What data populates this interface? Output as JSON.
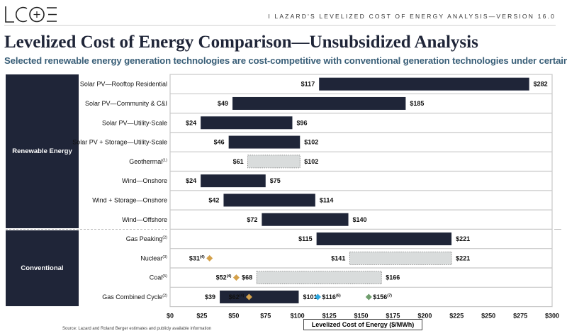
{
  "header": {
    "logo_text": "LCOE",
    "tagline": "I   LAZARD'S LEVELIZED COST OF ENERGY ANALYSIS—VERSION 16.0"
  },
  "title": "Levelized Cost of Energy Comparison—Unsubsidized Analysis",
  "subtitle": "Selected renewable energy generation technologies are cost-competitive with conventional generation technologies under certain circumstances",
  "categories": [
    {
      "label": "Renewable Energy",
      "rows": 8
    },
    {
      "label": "Conventional",
      "rows": 4
    }
  ],
  "source": "Source:   Lazard and Roland Berger estimates and publicly available information",
  "colors": {
    "bar": "#1f2538",
    "estimate_bar": "#d9dcdc",
    "gold_marker": "#d4a14a",
    "blue_marker": "#2fa8e0",
    "green_marker": "#6f9e6d"
  },
  "chart_data": {
    "type": "bar",
    "orientation": "horizontal-range",
    "title": "Levelized Cost of Energy Comparison—Unsubsidized Analysis",
    "xlabel": "Levelized Cost of Energy ($/MWh)",
    "ylabel": "",
    "xlim": [
      0,
      300
    ],
    "xticks": [
      0,
      25,
      50,
      75,
      100,
      125,
      150,
      175,
      200,
      225,
      250,
      275,
      300
    ],
    "xtick_labels": [
      "$0",
      "$25",
      "$50",
      "$75",
      "$100",
      "$125",
      "$150",
      "$175",
      "$200",
      "$225",
      "$250",
      "$275",
      "$300"
    ],
    "grid": false,
    "rows": [
      {
        "label": "Solar PV—Rooftop Residential",
        "sup": "",
        "low": 117,
        "high": 282,
        "low_label": "$117",
        "high_label": "$282",
        "style": "solid",
        "group": "Renewable Energy"
      },
      {
        "label": "Solar PV—Community & C&I",
        "sup": "",
        "low": 49,
        "high": 185,
        "low_label": "$49",
        "high_label": "$185",
        "style": "solid",
        "group": "Renewable Energy"
      },
      {
        "label": "Solar PV—Utility-Scale",
        "sup": "",
        "low": 24,
        "high": 96,
        "low_label": "$24",
        "high_label": "$96",
        "style": "solid",
        "group": "Renewable Energy"
      },
      {
        "label": "Solar PV + Storage—Utility-Scale",
        "sup": "",
        "low": 46,
        "high": 102,
        "low_label": "$46",
        "high_label": "$102",
        "style": "solid",
        "group": "Renewable Energy"
      },
      {
        "label": "Geothermal",
        "sup": "(1)",
        "low": 61,
        "high": 102,
        "low_label": "$61",
        "high_label": "$102",
        "style": "dashed",
        "group": "Renewable Energy"
      },
      {
        "label": "Wind—Onshore",
        "sup": "",
        "low": 24,
        "high": 75,
        "low_label": "$24",
        "high_label": "$75",
        "style": "solid",
        "group": "Renewable Energy"
      },
      {
        "label": "Wind + Storage—Onshore",
        "sup": "",
        "low": 42,
        "high": 114,
        "low_label": "$42",
        "high_label": "$114",
        "style": "solid",
        "group": "Renewable Energy"
      },
      {
        "label": "Wind—Offshore",
        "sup": "",
        "low": 72,
        "high": 140,
        "low_label": "$72",
        "high_label": "$140",
        "style": "solid",
        "group": "Renewable Energy"
      },
      {
        "label": "Gas Peaking",
        "sup": "(2)",
        "low": 115,
        "high": 221,
        "low_label": "$115",
        "high_label": "$221",
        "style": "solid",
        "group": "Conventional"
      },
      {
        "label": "Nuclear",
        "sup": "(3)",
        "low": 141,
        "high": 221,
        "low_label": "$141",
        "high_label": "$221",
        "style": "dashed",
        "group": "Conventional",
        "markers": [
          {
            "value": 31,
            "label": "$31",
            "sup": "(4)",
            "color": "gold",
            "label_side": "left"
          }
        ]
      },
      {
        "label": "Coal",
        "sup": "(5)",
        "low": 68,
        "high": 166,
        "low_label": "$68",
        "high_label": "$166",
        "style": "dashed",
        "group": "Conventional",
        "markers": [
          {
            "value": 52,
            "label": "$52",
            "sup": "(4)",
            "color": "gold",
            "label_side": "left"
          }
        ]
      },
      {
        "label": "Gas Combined Cycle",
        "sup": "(2)",
        "low": 39,
        "high": 101,
        "low_label": "$39",
        "high_label": "$101",
        "style": "solid",
        "group": "Conventional",
        "markers": [
          {
            "value": 62,
            "label": "$62",
            "sup": "(4)",
            "color": "gold",
            "label_side": "left"
          },
          {
            "value": 116,
            "label": "$116",
            "sup": "(6)",
            "color": "blue",
            "label_side": "right"
          },
          {
            "value": 156,
            "label": "$156",
            "sup": "(7)",
            "color": "green",
            "label_side": "right"
          }
        ]
      }
    ]
  }
}
